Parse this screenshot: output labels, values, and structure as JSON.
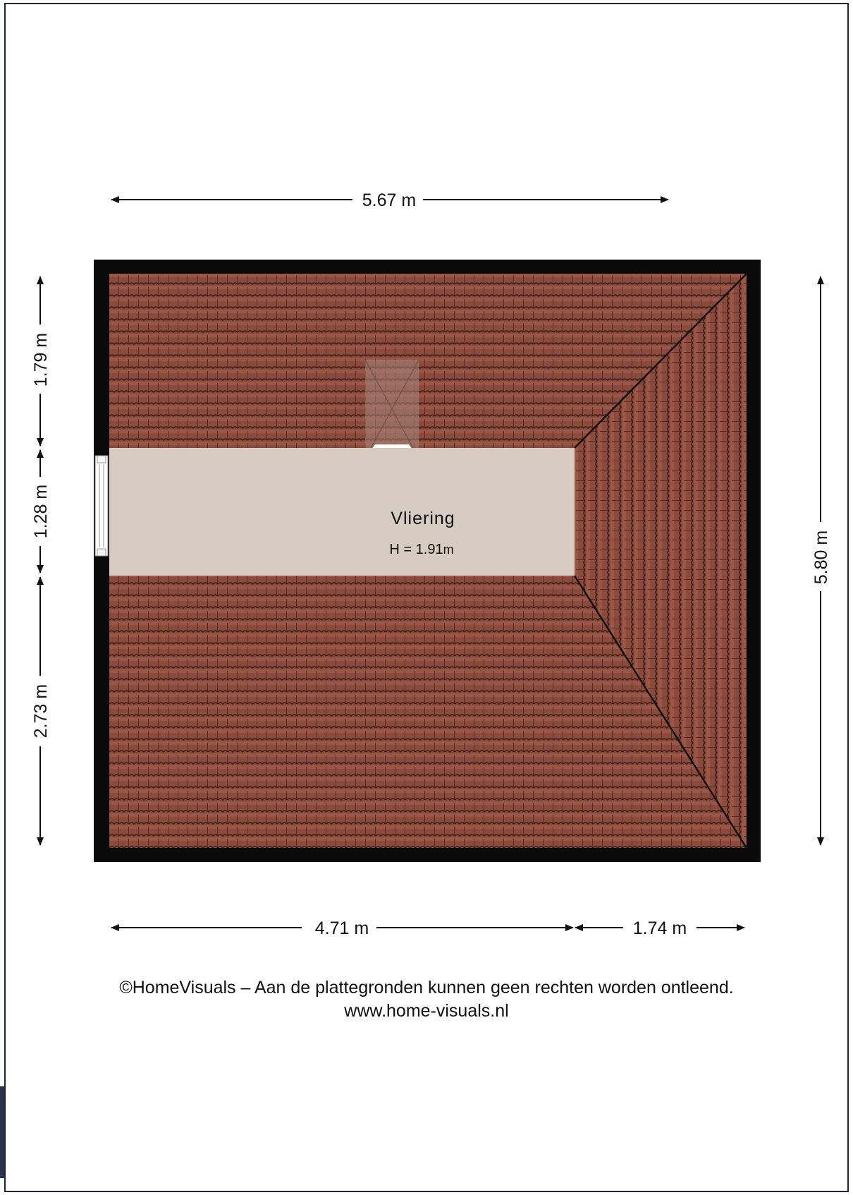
{
  "dimensions": {
    "top_width": "5.67 m",
    "bottom_left": "4.71 m",
    "bottom_right": "1.74 m",
    "left_top": "1.79 m",
    "left_middle": "1.28 m",
    "left_bottom": "2.73 m",
    "right_height": "5.80 m"
  },
  "room": {
    "name": "Vliering",
    "height_label": "H = 1.91",
    "height_unit": "m"
  },
  "footer": {
    "copyright": "©HomeVisuals – Aan de plattegronden kunnen geen rechten worden ontleend.",
    "website": "www.home-visuals.nl"
  },
  "colors": {
    "wall": "#0a0a0a",
    "roof_tile": "#8a4a3c",
    "tile_line": "#3a1c14",
    "floor": "#d6ccc2",
    "ink": "#111111"
  }
}
